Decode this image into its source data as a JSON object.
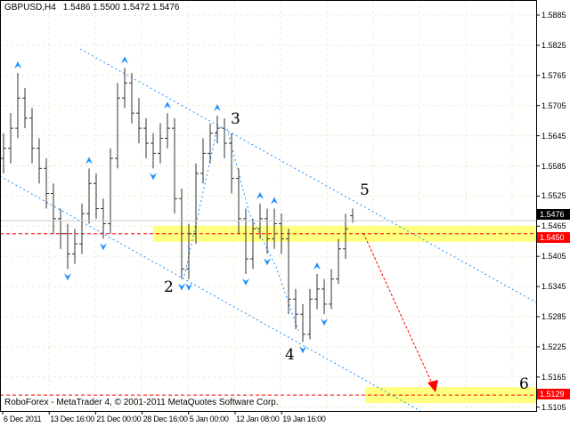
{
  "header": {
    "symbol": "GBPUSD,H4",
    "ohlc": "1.5486 1.5500 1.5472 1.5476"
  },
  "footer": {
    "copyright": "RoboForex - MetaTrader 4, © 2001-2011 MetaQuotes Software Corp."
  },
  "colors": {
    "bars": "#333333",
    "grid": "#eeeed0",
    "channel": "#1e90ff",
    "level": "#ff0000",
    "zone": "#ffff80",
    "arrow": "#ff0000",
    "current_tag": "#000000",
    "level_tag": "#ff0000"
  },
  "chart_data": {
    "type": "ohlc",
    "yaxis": {
      "ticks": [
        "1.5885",
        "1.5825",
        "1.5765",
        "1.5705",
        "1.5645",
        "1.5585",
        "1.5525",
        "1.5465",
        "1.5405",
        "1.5345",
        "1.5285",
        "1.5225",
        "1.5165",
        "1.5105"
      ],
      "range": [
        1.5098,
        1.5915
      ]
    },
    "xaxis": {
      "ticks": [
        "6 Dec 2011",
        "13 Dec 16:00",
        "21 Dec 00:00",
        "28 Dec 16:00",
        "5 Jan 00:00",
        "12 Jan 08:00",
        "19 Jan 16:00"
      ]
    },
    "current_price": "1.5476",
    "levels": [
      {
        "price": 1.545,
        "label": "1.5450"
      },
      {
        "price": 1.5129,
        "label": "1.5129"
      }
    ],
    "wave_labels": [
      "2",
      "3",
      "4",
      "5",
      "6"
    ],
    "bars": [
      [
        1.56,
        1.565,
        1.557,
        1.562
      ],
      [
        1.562,
        1.569,
        1.559,
        1.566
      ],
      [
        1.566,
        1.577,
        1.564,
        1.572
      ],
      [
        1.572,
        1.574,
        1.566,
        1.568
      ],
      [
        1.568,
        1.57,
        1.559,
        1.562
      ],
      [
        1.562,
        1.564,
        1.555,
        1.558
      ],
      [
        1.558,
        1.56,
        1.55,
        1.553
      ],
      [
        1.553,
        1.555,
        1.545,
        1.548
      ],
      [
        1.548,
        1.55,
        1.542,
        1.545
      ],
      [
        1.545,
        1.547,
        1.538,
        1.541
      ],
      [
        1.541,
        1.546,
        1.539,
        1.543
      ],
      [
        1.543,
        1.551,
        1.541,
        1.549
      ],
      [
        1.549,
        1.558,
        1.547,
        1.555
      ],
      [
        1.555,
        1.557,
        1.548,
        1.55
      ],
      [
        1.55,
        1.552,
        1.544,
        1.547
      ],
      [
        1.547,
        1.562,
        1.545,
        1.56
      ],
      [
        1.56,
        1.575,
        1.558,
        1.572
      ],
      [
        1.572,
        1.578,
        1.57,
        1.575
      ],
      [
        1.575,
        1.577,
        1.567,
        1.569
      ],
      [
        1.569,
        1.572,
        1.563,
        1.566
      ],
      [
        1.566,
        1.568,
        1.56,
        1.563
      ],
      [
        1.563,
        1.565,
        1.558,
        1.561
      ],
      [
        1.561,
        1.567,
        1.559,
        1.564
      ],
      [
        1.564,
        1.569,
        1.562,
        1.566
      ],
      [
        1.566,
        1.568,
        1.549,
        1.552
      ],
      [
        1.552,
        1.554,
        1.536,
        1.538
      ],
      [
        1.538,
        1.547,
        1.536,
        1.545
      ],
      [
        1.545,
        1.559,
        1.543,
        1.557
      ],
      [
        1.557,
        1.564,
        1.555,
        1.561
      ],
      [
        1.561,
        1.567,
        1.559,
        1.565
      ],
      [
        1.565,
        1.5685,
        1.563,
        1.566
      ],
      [
        1.566,
        1.568,
        1.56,
        1.563
      ],
      [
        1.563,
        1.565,
        1.553,
        1.556
      ],
      [
        1.556,
        1.558,
        1.545,
        1.548
      ],
      [
        1.548,
        1.55,
        1.537,
        1.54
      ],
      [
        1.54,
        1.548,
        1.538,
        1.546
      ],
      [
        1.546,
        1.551,
        1.544,
        1.548
      ],
      [
        1.548,
        1.55,
        1.541,
        1.544
      ],
      [
        1.544,
        1.55,
        1.542,
        1.547
      ],
      [
        1.547,
        1.549,
        1.541,
        1.544
      ],
      [
        1.544,
        1.546,
        1.529,
        1.532
      ],
      [
        1.532,
        1.534,
        1.526,
        1.529
      ],
      [
        1.529,
        1.531,
        1.5235,
        1.525
      ],
      [
        1.525,
        1.534,
        1.524,
        1.532
      ],
      [
        1.532,
        1.537,
        1.53,
        1.534
      ],
      [
        1.534,
        1.536,
        1.529,
        1.531
      ],
      [
        1.531,
        1.538,
        1.53,
        1.536
      ],
      [
        1.536,
        1.544,
        1.535,
        1.542
      ],
      [
        1.542,
        1.549,
        1.54,
        1.546
      ],
      [
        1.5486,
        1.55,
        1.5472,
        1.5476
      ]
    ]
  }
}
